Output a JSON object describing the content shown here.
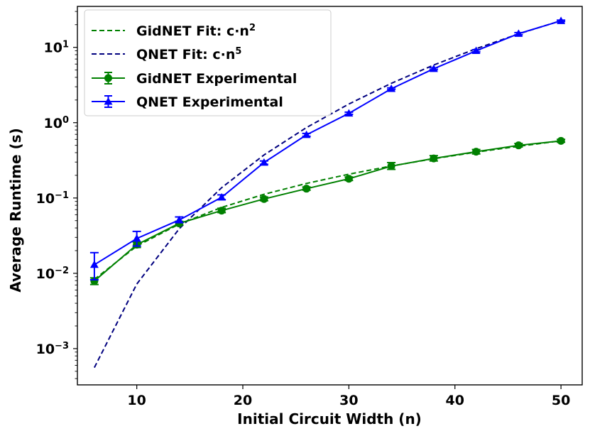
{
  "chart_data": {
    "type": "line",
    "title": "",
    "xlabel": "Initial Circuit Width (n)",
    "ylabel": "Average Runtime (s)",
    "xscale": "linear",
    "yscale": "log",
    "xlim": [
      4.4,
      52.0
    ],
    "ylim": [
      0.00033,
      35
    ],
    "xticks": [
      10,
      20,
      30,
      40,
      50
    ],
    "yticks": [
      {
        "value": 0.001,
        "base": "10",
        "exp": "−3"
      },
      {
        "value": 0.01,
        "base": "10",
        "exp": "−2"
      },
      {
        "value": 0.1,
        "base": "10",
        "exp": "−1"
      },
      {
        "value": 1,
        "base": "10",
        "exp": "0"
      },
      {
        "value": 10,
        "base": "10",
        "exp": "1"
      }
    ],
    "legend_position": "top-left",
    "series": [
      {
        "name": "GidNET Fit",
        "legend_prefix": "GidNET Fit: c·n",
        "legend_exp": "2",
        "kind": "fit",
        "color": "#008000",
        "x": [
          6,
          10,
          14,
          18,
          22,
          26,
          30,
          34,
          38,
          42,
          46,
          50
        ],
        "y": [
          0.0083,
          0.023,
          0.045,
          0.075,
          0.112,
          0.156,
          0.207,
          0.266,
          0.332,
          0.406,
          0.486,
          0.574
        ]
      },
      {
        "name": "QNET Fit",
        "legend_prefix": "QNET Fit: c·n",
        "legend_exp": "5",
        "kind": "fit",
        "color": "#00007f",
        "x": [
          6,
          10,
          14,
          18,
          22,
          26,
          30,
          34,
          38,
          42,
          46,
          50
        ],
        "y": [
          0.00056,
          0.0072,
          0.039,
          0.137,
          0.373,
          0.861,
          1.77,
          3.33,
          5.83,
          9.6,
          15.1,
          22.6
        ]
      },
      {
        "name": "GidNET Experimental",
        "kind": "experimental",
        "marker": "circle",
        "color": "#008000",
        "x": [
          6,
          10,
          14,
          18,
          22,
          26,
          30,
          34,
          38,
          42,
          46,
          50
        ],
        "y": [
          0.0079,
          0.024,
          0.046,
          0.068,
          0.097,
          0.133,
          0.18,
          0.265,
          0.335,
          0.412,
          0.5,
          0.574
        ],
        "err_low": [
          0.0071,
          0.022,
          0.044,
          0.064,
          0.092,
          0.127,
          0.171,
          0.24,
          0.31,
          0.385,
          0.475,
          0.55
        ],
        "err_high": [
          0.0087,
          0.026,
          0.049,
          0.073,
          0.103,
          0.14,
          0.19,
          0.295,
          0.365,
          0.44,
          0.53,
          0.6
        ]
      },
      {
        "name": "QNET Experimental",
        "kind": "experimental",
        "marker": "triangle",
        "color": "#0000ff",
        "x": [
          6,
          10,
          14,
          18,
          22,
          26,
          30,
          34,
          38,
          42,
          46,
          50
        ],
        "y": [
          0.013,
          0.029,
          0.051,
          0.102,
          0.296,
          0.69,
          1.33,
          2.82,
          5.2,
          9.0,
          15.2,
          22.5
        ],
        "err_low": [
          0.0082,
          0.023,
          0.047,
          0.095,
          0.28,
          0.66,
          1.29,
          2.75,
          5.05,
          8.7,
          14.7,
          22.0
        ],
        "err_high": [
          0.0188,
          0.036,
          0.056,
          0.11,
          0.31,
          0.72,
          1.38,
          2.9,
          5.35,
          9.3,
          15.7,
          23.0
        ]
      }
    ]
  }
}
